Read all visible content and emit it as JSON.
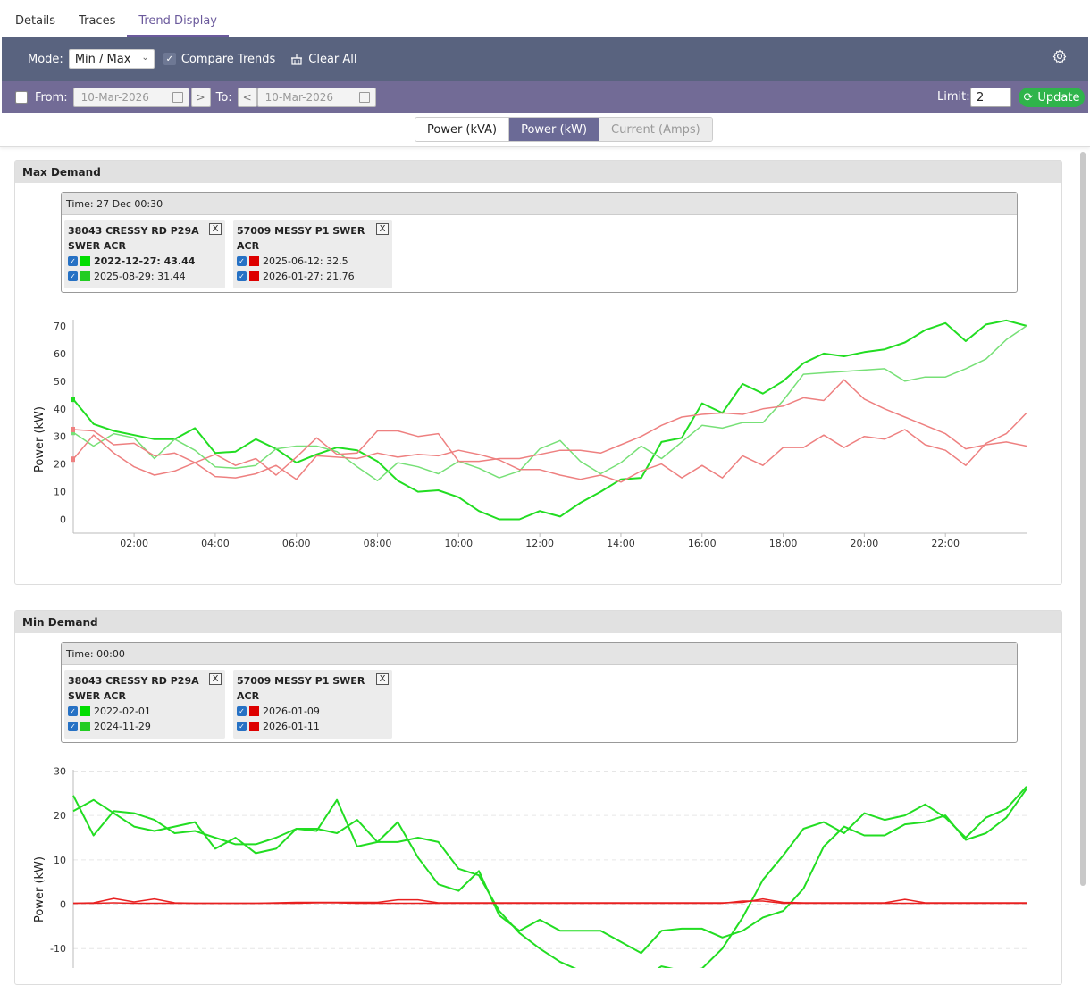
{
  "tabs": [
    {
      "label": "Details"
    },
    {
      "label": "Traces"
    },
    {
      "label": "Trend Display"
    }
  ],
  "toolbar": {
    "mode_label": "Mode:",
    "mode_value": "Min / Max",
    "compare_label": "Compare Trends",
    "clear_label": "Clear All"
  },
  "range": {
    "from_label": "From:",
    "from_value": "10-Mar-2026",
    "to_label": "To:",
    "to_value": "10-Mar-2026",
    "limit_label": "Limit:",
    "limit_value": "2",
    "update_label": "Update"
  },
  "units": [
    "Power (kVA)",
    "Power (kW)",
    "Current (Amps)"
  ],
  "colors": {
    "green_bright": "#22dd22",
    "green_light": "#77e077",
    "red_bright": "#e82020",
    "red_light": "#ee8080",
    "accent": "#6b6a96",
    "update": "#2fb44b"
  },
  "max_panel": {
    "title": "Max Demand",
    "time": "Time: 27 Dec 00:30",
    "cards": [
      {
        "title": "38043 CRESSY RD P29A SWER ACR",
        "rows": [
          {
            "label": "2022-12-27: 43.44",
            "color": "#00dd00",
            "bold": true
          },
          {
            "label": "2025-08-29: 31.44",
            "color": "#22cc22",
            "bold": false
          }
        ]
      },
      {
        "title": "57009 MESSY P1 SWER ACR",
        "rows": [
          {
            "label": "2025-06-12: 32.5",
            "color": "#dd0000",
            "bold": false
          },
          {
            "label": "2026-01-27: 21.76",
            "color": "#dd0000",
            "bold": false
          }
        ]
      }
    ]
  },
  "min_panel": {
    "title": "Min Demand",
    "time": "Time: 00:00",
    "cards": [
      {
        "title": "38043 CRESSY RD P29A SWER ACR",
        "rows": [
          {
            "label": "2022-02-01",
            "color": "#00dd00",
            "bold": false
          },
          {
            "label": "2024-11-29",
            "color": "#22cc22",
            "bold": false
          }
        ]
      },
      {
        "title": "57009 MESSY P1 SWER ACR",
        "rows": [
          {
            "label": "2026-01-09",
            "color": "#dd0000",
            "bold": false
          },
          {
            "label": "2026-01-11",
            "color": "#dd0000",
            "bold": false
          }
        ]
      }
    ]
  },
  "chart_data": [
    {
      "type": "line",
      "title": "",
      "ylabel": "Power (kW)",
      "xlabel": "",
      "ylim": [
        -5,
        80
      ],
      "xlim": [
        0.5,
        24
      ],
      "yticks": [
        0,
        10,
        20,
        30,
        40,
        50,
        60,
        70
      ],
      "xticks": [
        2,
        4,
        6,
        8,
        10,
        12,
        14,
        16,
        18,
        20,
        22
      ],
      "xtick_labels": [
        "02:00",
        "04:00",
        "06:00",
        "08:00",
        "10:00",
        "12:00",
        "14:00",
        "16:00",
        "18:00",
        "20:00",
        "22:00"
      ],
      "grid": false,
      "series": [
        {
          "name": "2022-12-27",
          "color": "#22dd22",
          "width": 2,
          "x": [
            0.5,
            1,
            1.5,
            2,
            2.5,
            3,
            3.5,
            4,
            4.5,
            5,
            5.5,
            6,
            6.5,
            7,
            7.5,
            8,
            8.5,
            9,
            9.5,
            10,
            10.5,
            11,
            11.5,
            12,
            12.5,
            13,
            13.5,
            14,
            14.5,
            15,
            15.5,
            16,
            16.5,
            17,
            17.5,
            18,
            18.5,
            19,
            19.5,
            20,
            20.5,
            21,
            21.5,
            22,
            22.5,
            23,
            23.5,
            24
          ],
          "y": [
            43.44,
            34.5,
            32,
            30.5,
            29,
            29,
            33,
            24,
            24.5,
            29,
            25.5,
            20.5,
            23.5,
            26,
            25,
            21,
            14,
            10,
            10.5,
            8,
            3,
            0,
            0,
            3,
            1,
            6,
            10,
            14.5,
            15,
            28,
            29.5,
            42,
            38.5,
            49,
            45.5,
            50,
            56.5,
            60,
            59,
            60.5,
            61.5,
            64,
            68.5,
            71,
            64.5,
            70.5,
            72,
            70
          ]
        },
        {
          "name": "2025-08-29",
          "color": "#77e077",
          "width": 1.5,
          "x": [
            0.5,
            1,
            1.5,
            2,
            2.5,
            3,
            3.5,
            4,
            4.5,
            5,
            5.5,
            6,
            6.5,
            7,
            7.5,
            8,
            8.5,
            9,
            9.5,
            10,
            10.5,
            11,
            11.5,
            12,
            12.5,
            13,
            13.5,
            14,
            14.5,
            15,
            15.5,
            16,
            16.5,
            17,
            17.5,
            18,
            18.5,
            19,
            19.5,
            20,
            20.5,
            21,
            21.5,
            22,
            22.5,
            23,
            23.5,
            24
          ],
          "y": [
            31.44,
            26.5,
            31,
            29.5,
            22,
            29,
            25,
            19,
            18.5,
            19.5,
            25.5,
            26.5,
            26.5,
            24.5,
            19,
            14,
            20.5,
            19,
            16.5,
            21,
            18.5,
            15,
            17.5,
            25.5,
            28.5,
            21,
            16.5,
            20.5,
            26.5,
            22,
            28,
            34,
            33,
            35,
            35,
            43,
            52.5,
            53,
            53.5,
            54,
            54.5,
            50,
            51.5,
            51.5,
            54.5,
            58,
            65,
            70
          ]
        },
        {
          "name": "2025-06-12",
          "color": "#ee8080",
          "width": 1.5,
          "x": [
            0.5,
            1,
            1.5,
            2,
            2.5,
            3,
            3.5,
            4,
            4.5,
            5,
            5.5,
            6,
            6.5,
            7,
            7.5,
            8,
            8.5,
            9,
            9.5,
            10,
            10.5,
            11,
            11.5,
            12,
            12.5,
            13,
            13.5,
            14,
            14.5,
            15,
            15.5,
            16,
            16.5,
            17,
            17.5,
            18,
            18.5,
            19,
            19.5,
            20,
            20.5,
            21,
            21.5,
            22,
            22.5,
            23,
            23.5,
            24
          ],
          "y": [
            32.5,
            32,
            27,
            27.5,
            23,
            24,
            20.5,
            23.5,
            19.5,
            22,
            16,
            22.5,
            29.5,
            23.5,
            24,
            32,
            32,
            30,
            31,
            21,
            21,
            22,
            22,
            23.5,
            25,
            25,
            24,
            27,
            30,
            34,
            37,
            38,
            38.5,
            38,
            40,
            41,
            44,
            43,
            50.5,
            43.5,
            40,
            37,
            34,
            31,
            25.5,
            27,
            28,
            26.5
          ]
        },
        {
          "name": "2026-01-27",
          "color": "#ee8080",
          "width": 1.5,
          "x": [
            0.5,
            1,
            1.5,
            2,
            2.5,
            3,
            3.5,
            4,
            4.5,
            5,
            5.5,
            6,
            6.5,
            7,
            7.5,
            8,
            8.5,
            9,
            9.5,
            10,
            10.5,
            11,
            11.5,
            12,
            12.5,
            13,
            13.5,
            14,
            14.5,
            15,
            15.5,
            16,
            16.5,
            17,
            17.5,
            18,
            18.5,
            19,
            19.5,
            20,
            20.5,
            21,
            21.5,
            22,
            22.5,
            23,
            23.5,
            24
          ],
          "y": [
            21.76,
            30.5,
            24,
            19,
            16,
            17.5,
            20.5,
            15.5,
            15,
            16.5,
            19.5,
            14.5,
            23,
            22.5,
            22,
            24,
            22.5,
            23.5,
            23,
            25,
            23.5,
            21.5,
            18,
            18,
            16,
            14.5,
            16,
            13.5,
            17.5,
            20,
            15,
            19.5,
            15,
            23,
            19.5,
            26,
            26,
            30.5,
            26,
            30,
            29,
            32.5,
            27,
            25,
            19.5,
            27.5,
            31,
            38.5
          ]
        }
      ]
    },
    {
      "type": "line",
      "title": "",
      "ylabel": "Power (kW)",
      "xlabel": "",
      "ylim": [
        -17,
        32
      ],
      "xlim": [
        0.5,
        24
      ],
      "yticks": [
        -10,
        0,
        10,
        20,
        30
      ],
      "grid": true,
      "series": [
        {
          "name": "2022-02-01",
          "color": "#22dd22",
          "width": 2,
          "x": [
            0.5,
            1,
            1.5,
            2,
            2.5,
            3,
            3.5,
            4,
            4.5,
            5,
            5.5,
            6,
            6.5,
            7,
            7.5,
            8,
            8.5,
            9,
            9.5,
            10,
            10.5,
            11,
            11.5,
            12,
            12.5,
            13,
            13.5,
            14,
            14.5,
            15,
            15.5,
            16,
            16.5,
            17,
            17.5,
            18,
            18.5,
            19,
            19.5,
            20,
            20.5,
            21,
            21.5,
            22,
            22.5,
            23,
            23.5,
            24
          ],
          "y": [
            24.5,
            15.5,
            21,
            20.5,
            19,
            16,
            16.5,
            15,
            13.5,
            13.5,
            15,
            17,
            17,
            16,
            19,
            14,
            14,
            15,
            14,
            8,
            6.5,
            -1.5,
            -6.5,
            -10,
            -13,
            -15,
            -16.5,
            -16,
            -17,
            -14,
            -15,
            -14.5,
            -10,
            -3,
            5.5,
            11,
            17,
            18.5,
            16,
            20.5,
            19,
            20,
            22.5,
            19.5,
            15,
            19.5,
            21.5,
            26.5
          ]
        },
        {
          "name": "2024-11-29",
          "color": "#22dd22",
          "width": 2,
          "x": [
            0.5,
            1,
            1.5,
            2,
            2.5,
            3,
            3.5,
            4,
            4.5,
            5,
            5.5,
            6,
            6.5,
            7,
            7.5,
            8,
            8.5,
            9,
            9.5,
            10,
            10.5,
            11,
            11.5,
            12,
            12.5,
            13,
            13.5,
            14,
            14.5,
            15,
            15.5,
            16,
            16.5,
            17,
            17.5,
            18,
            18.5,
            19,
            19.5,
            20,
            20.5,
            21,
            21.5,
            22,
            22.5,
            23,
            23.5,
            24
          ],
          "y": [
            21,
            23.5,
            20.5,
            17.5,
            16.5,
            17.5,
            18.5,
            12.5,
            15,
            11.5,
            12.5,
            17,
            16.5,
            23.5,
            13,
            14,
            18.5,
            10.5,
            4.5,
            3,
            7.5,
            -2.5,
            -6,
            -3.5,
            -6,
            -6,
            -6,
            -8.5,
            -11,
            -6,
            -5.5,
            -5.5,
            -7.5,
            -6,
            -3,
            -1.5,
            3.5,
            13,
            17.5,
            15.5,
            15.5,
            18,
            18.5,
            20,
            14.5,
            16,
            19.5,
            26
          ]
        },
        {
          "name": "2026-01-09",
          "color": "#e82020",
          "width": 1.5,
          "x": [
            0.5,
            1,
            1.5,
            2,
            2.5,
            3,
            3.5,
            4,
            4.5,
            5,
            5.5,
            6,
            6.5,
            7,
            7.5,
            8,
            8.5,
            9,
            9.5,
            10,
            10.5,
            11,
            11.5,
            12,
            12.5,
            13,
            13.5,
            14,
            14.5,
            15,
            15.5,
            16,
            16.5,
            17,
            17.5,
            18,
            18.5,
            19,
            19.5,
            20,
            20.5,
            21,
            21.5,
            22,
            22.5,
            23,
            23.5,
            24
          ],
          "y": [
            0.2,
            0.3,
            1.3,
            0.5,
            1.2,
            0.3,
            0.2,
            0.2,
            0.2,
            0.2,
            0.3,
            0.4,
            0.4,
            0.4,
            0.4,
            0.4,
            1,
            1,
            0.3,
            0.3,
            0.3,
            0.3,
            0.3,
            0.3,
            0.3,
            0.3,
            0.3,
            0.3,
            0.3,
            0.3,
            0.3,
            0.3,
            0.3,
            0.4,
            1.2,
            0.4,
            0.3,
            0.3,
            0.3,
            0.3,
            0.3,
            1.1,
            0.3,
            0.3,
            0.3,
            0.3,
            0.3,
            0.3
          ]
        },
        {
          "name": "2026-01-11",
          "color": "#e82020",
          "width": 1.5,
          "x": [
            0.5,
            1,
            1.5,
            2,
            2.5,
            3,
            3.5,
            4,
            4.5,
            5,
            5.5,
            6,
            6.5,
            7,
            7.5,
            8,
            8.5,
            9,
            9.5,
            10,
            10.5,
            11,
            11.5,
            12,
            12.5,
            13,
            13.5,
            14,
            14.5,
            15,
            15.5,
            16,
            16.5,
            17,
            17.5,
            18,
            18.5,
            19,
            19.5,
            20,
            20.5,
            21,
            21.5,
            22,
            22.5,
            23,
            23.5,
            24
          ],
          "y": [
            0.2,
            0.2,
            0.3,
            0.2,
            0.2,
            0.2,
            0.2,
            0.2,
            0.2,
            0.2,
            0.2,
            0.2,
            0.3,
            0.3,
            0.2,
            0.2,
            0.2,
            0.2,
            0.2,
            0.2,
            0.2,
            0.2,
            0.2,
            0.2,
            0.2,
            0.2,
            0.2,
            0.2,
            0.2,
            0.2,
            0.2,
            0.2,
            0.2,
            0.7,
            0.7,
            0.2,
            0.2,
            0.2,
            0.2,
            0.2,
            0.2,
            0.2,
            0.2,
            0.2,
            0.2,
            0.2,
            0.2,
            0.2
          ]
        }
      ]
    }
  ]
}
